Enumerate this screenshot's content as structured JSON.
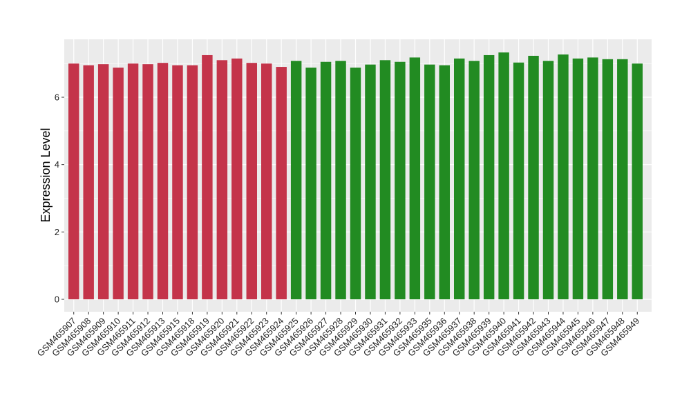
{
  "chart_data": {
    "type": "bar",
    "ylabel": "Expression Level",
    "xlabel": "",
    "ylim": [
      0,
      7.6
    ],
    "yticks": [
      0,
      2,
      4,
      6
    ],
    "grid": true,
    "legend": "none",
    "panel_background": "#ebebeb",
    "grid_color": "#ffffff",
    "categories": [
      "GSM465907",
      "GSM465908",
      "GSM465909",
      "GSM465910",
      "GSM465911",
      "GSM465912",
      "GSM465913",
      "GSM465915",
      "GSM465918",
      "GSM465919",
      "GSM465920",
      "GSM465921",
      "GSM465922",
      "GSM465923",
      "GSM465924",
      "GSM465925",
      "GSM465926",
      "GSM465927",
      "GSM465928",
      "GSM465929",
      "GSM465930",
      "GSM465931",
      "GSM465932",
      "GSM465933",
      "GSM465935",
      "GSM465936",
      "GSM465937",
      "GSM465938",
      "GSM465939",
      "GSM465940",
      "GSM465941",
      "GSM465942",
      "GSM465943",
      "GSM465944",
      "GSM465945",
      "GSM465946",
      "GSM465947",
      "GSM465948",
      "GSM465949"
    ],
    "values": [
      7.0,
      6.95,
      6.98,
      6.88,
      7.0,
      6.98,
      7.02,
      6.95,
      6.95,
      7.25,
      7.1,
      7.15,
      7.02,
      7.0,
      6.9,
      7.08,
      6.88,
      7.05,
      7.08,
      6.88,
      6.97,
      7.1,
      7.05,
      7.18,
      6.97,
      6.95,
      7.15,
      7.08,
      7.25,
      7.33,
      7.03,
      7.23,
      7.08,
      7.27,
      7.15,
      7.18,
      7.13,
      7.13,
      7.0
    ],
    "colors": [
      "#c4344a",
      "#c4344a",
      "#c4344a",
      "#c4344a",
      "#c4344a",
      "#c4344a",
      "#c4344a",
      "#c4344a",
      "#c4344a",
      "#c4344a",
      "#c4344a",
      "#c4344a",
      "#c4344a",
      "#c4344a",
      "#c4344a",
      "#228b22",
      "#228b22",
      "#228b22",
      "#228b22",
      "#228b22",
      "#228b22",
      "#228b22",
      "#228b22",
      "#228b22",
      "#228b22",
      "#228b22",
      "#228b22",
      "#228b22",
      "#228b22",
      "#228b22",
      "#228b22",
      "#228b22",
      "#228b22",
      "#228b22",
      "#228b22",
      "#228b22",
      "#228b22",
      "#228b22",
      "#228b22"
    ]
  }
}
